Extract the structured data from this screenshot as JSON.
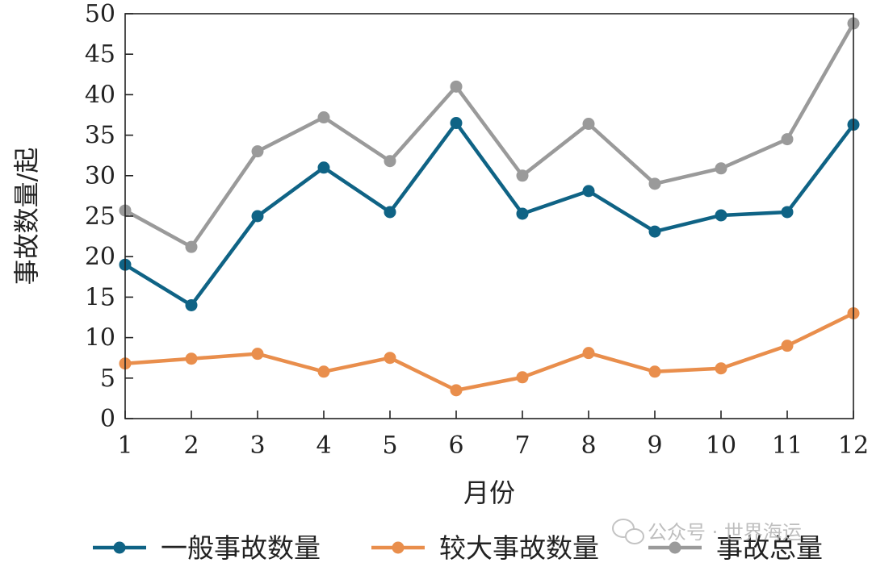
{
  "chart_data": {
    "type": "line",
    "title": "",
    "xlabel": "月份",
    "ylabel": "事故数量/起",
    "categories": [
      "1",
      "2",
      "3",
      "4",
      "5",
      "6",
      "7",
      "8",
      "9",
      "10",
      "11",
      "12"
    ],
    "ylim": [
      0,
      50
    ],
    "yticks": [
      "0",
      "5",
      "10",
      "15",
      "20",
      "25",
      "30",
      "35",
      "40",
      "45",
      "50"
    ],
    "grid": false,
    "legend_position": "bottom",
    "series": [
      {
        "name": "一般事故数量",
        "color": "#0f6385",
        "values": [
          19,
          14,
          25,
          31,
          25.5,
          36.5,
          25.3,
          28.1,
          23.1,
          25.1,
          25.5,
          36.3
        ]
      },
      {
        "name": "较大事故数量",
        "color": "#e98e4c",
        "values": [
          6.8,
          7.4,
          8,
          5.8,
          7.5,
          3.5,
          5.1,
          8.1,
          5.8,
          6.2,
          9,
          13
        ]
      },
      {
        "name": "事故总量",
        "color": "#9a9a9a",
        "values": [
          25.7,
          21.2,
          33,
          37.2,
          31.8,
          41,
          30,
          36.4,
          29,
          30.9,
          34.5,
          48.8
        ]
      }
    ]
  },
  "watermark": {
    "icon": "wechat-icon",
    "text": "公众号 · 世界海运"
  }
}
